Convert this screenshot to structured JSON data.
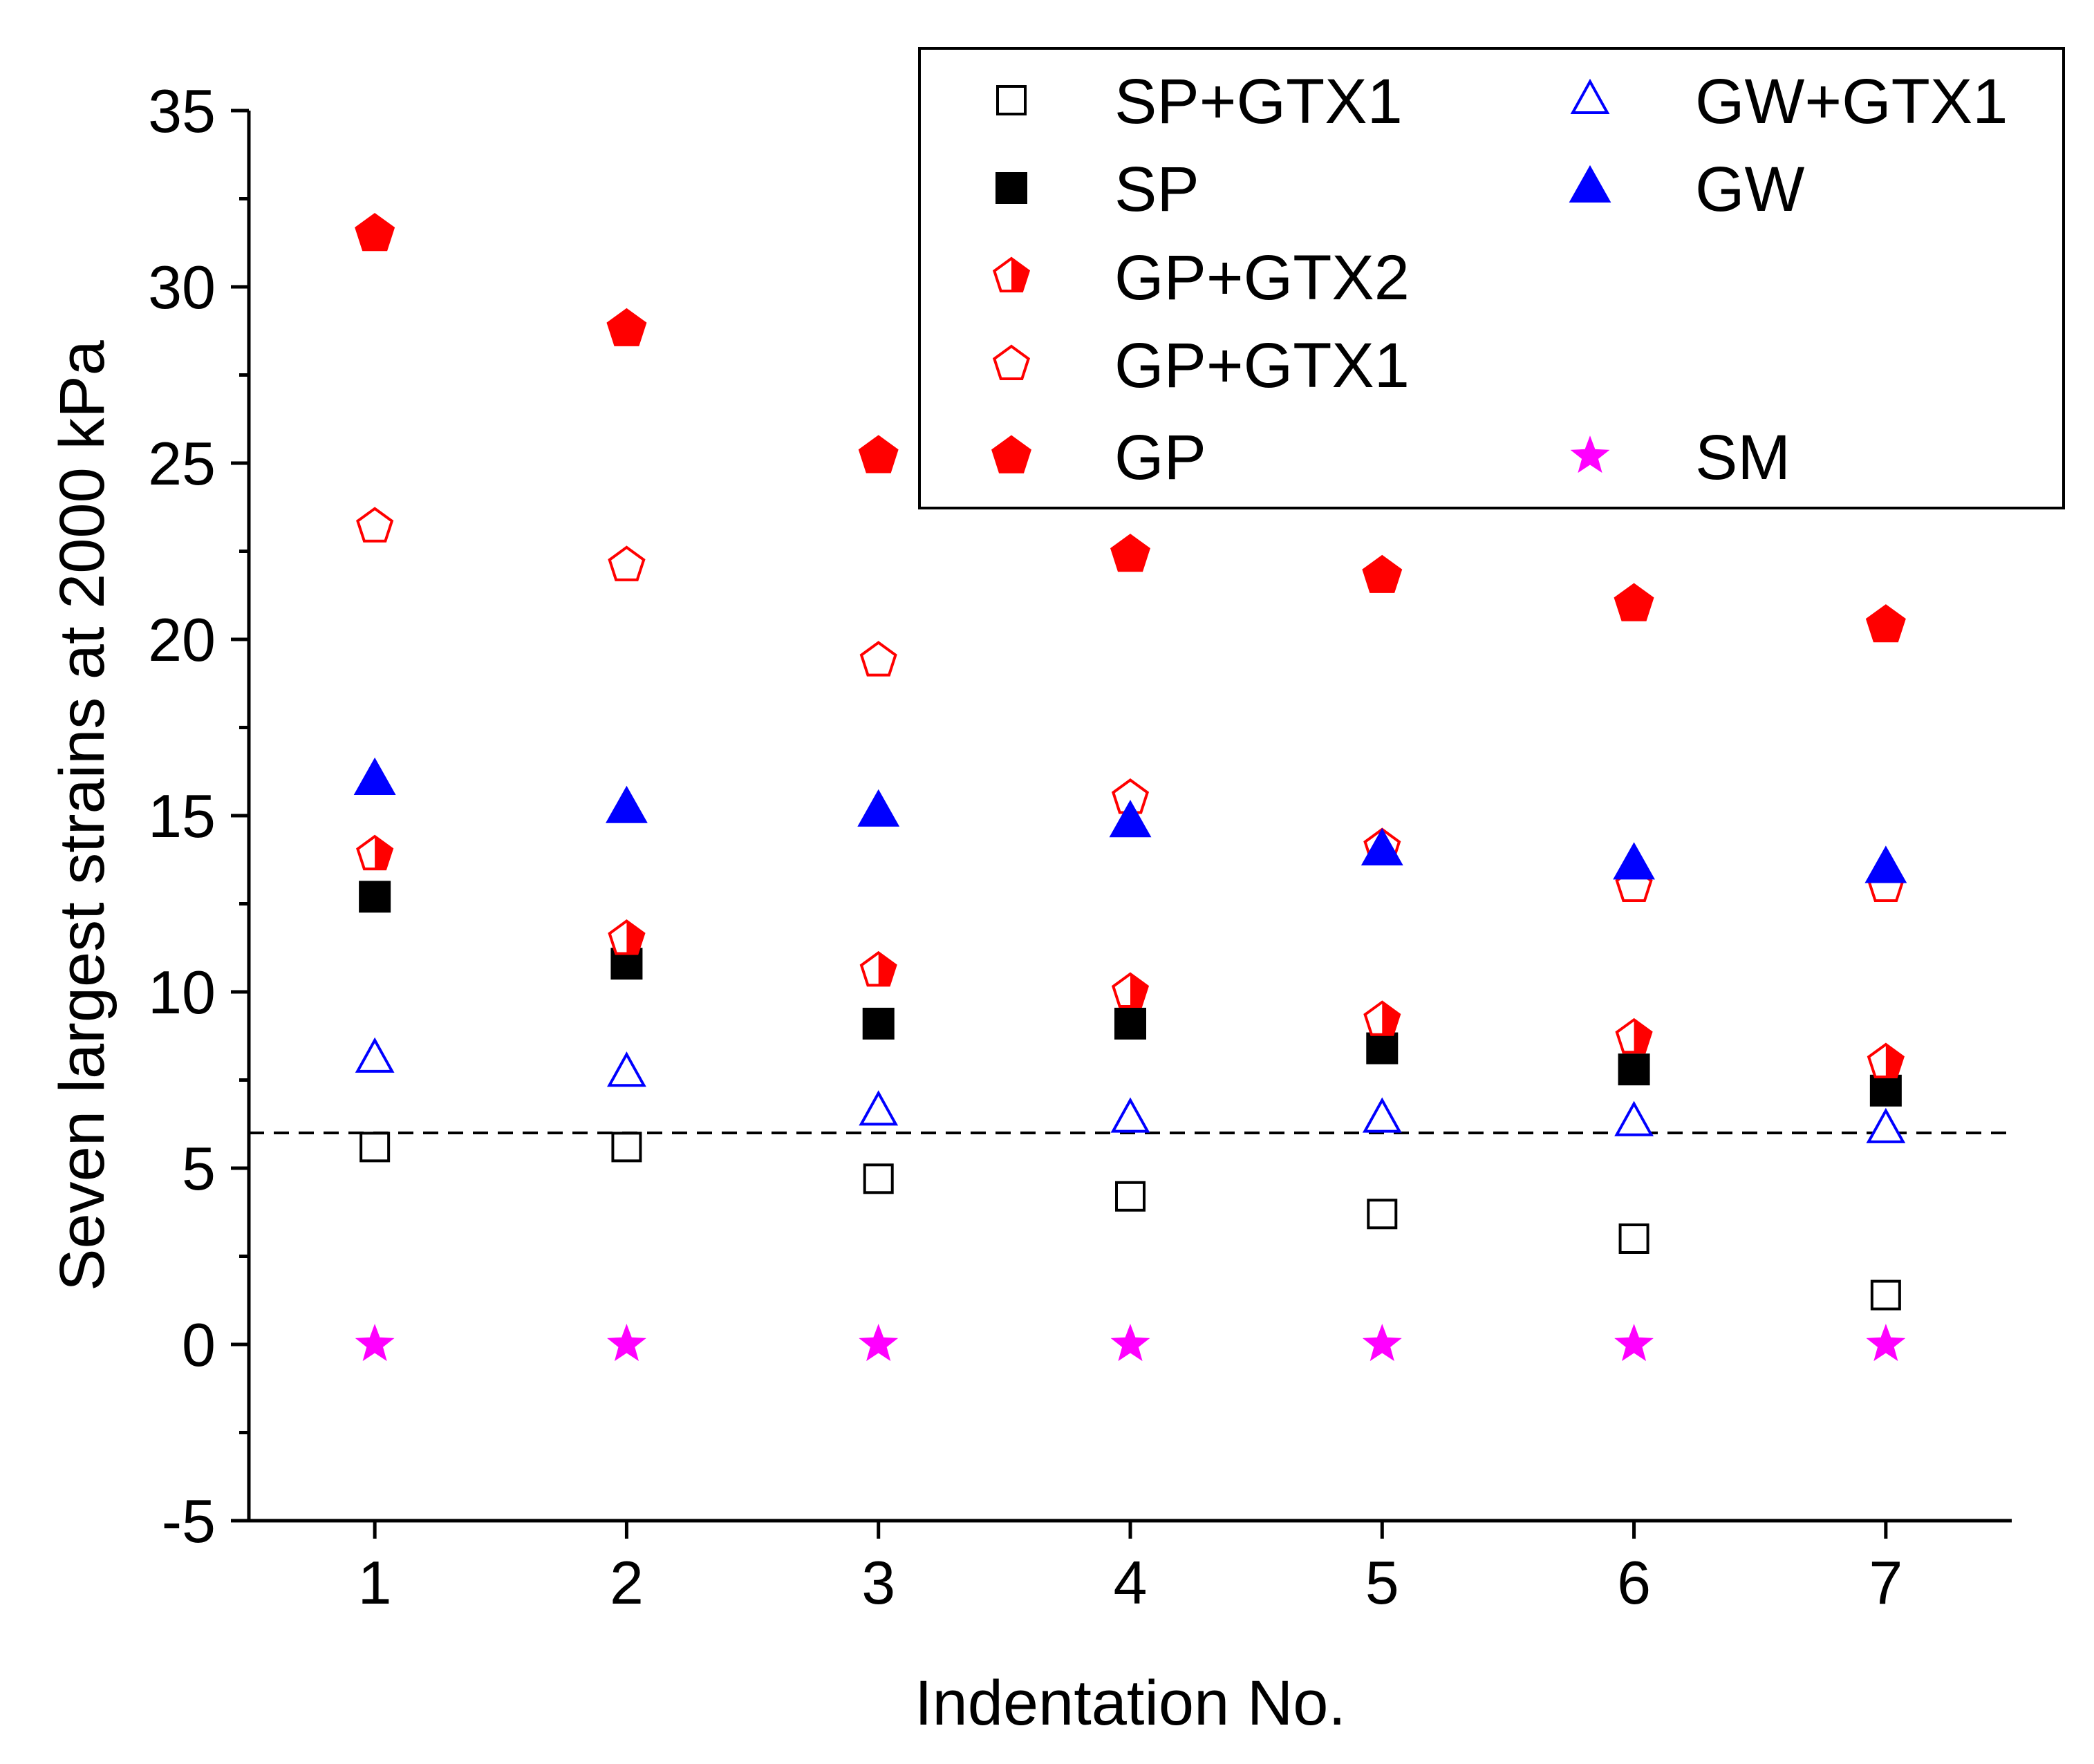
{
  "chart_data": {
    "type": "scatter",
    "xlabel": "Indentation No.",
    "ylabel": "Seven largest strains at 2000 kPa",
    "xlim": [
      0.5,
      7.5
    ],
    "ylim": [
      -5,
      35
    ],
    "x": [
      1,
      2,
      3,
      4,
      5,
      6,
      7
    ],
    "x_ticks": [
      "1",
      "2",
      "3",
      "4",
      "5",
      "6",
      "7"
    ],
    "y_ticks": [
      "-5",
      "0",
      "5",
      "10",
      "15",
      "20",
      "25",
      "30",
      "35"
    ],
    "y_tick_values": [
      -5,
      0,
      5,
      10,
      15,
      20,
      25,
      30,
      35
    ],
    "reference_line": {
      "y": 6,
      "style": "dashed",
      "color": "#000000"
    },
    "legend_position": "top-right",
    "series": [
      {
        "name": "SP+GTX1",
        "marker": "square-open",
        "color": "#000000",
        "values": [
          5.6,
          5.6,
          4.7,
          4.2,
          3.7,
          3.0,
          1.4
        ]
      },
      {
        "name": "SP",
        "marker": "square-filled",
        "color": "#000000",
        "values": [
          12.7,
          10.8,
          9.1,
          9.1,
          8.4,
          7.8,
          7.2
        ]
      },
      {
        "name": "GP+GTX2",
        "marker": "pentagon-half",
        "color": "#ff0000",
        "values": [
          13.9,
          11.5,
          10.6,
          10.0,
          9.2,
          8.7,
          8.0
        ]
      },
      {
        "name": "GP+GTX1",
        "marker": "pentagon-open",
        "color": "#ff0000",
        "values": [
          23.2,
          22.1,
          19.4,
          15.5,
          14.1,
          13.0,
          13.0
        ]
      },
      {
        "name": "GP",
        "marker": "pentagon-filled",
        "color": "#ff0000",
        "values": [
          31.5,
          28.8,
          25.2,
          22.4,
          21.8,
          21.0,
          20.4
        ]
      },
      {
        "name": "GW+GTX1",
        "marker": "triangle-open",
        "color": "#0000ff",
        "values": [
          8.1,
          7.7,
          6.6,
          6.4,
          6.4,
          6.3,
          6.1
        ]
      },
      {
        "name": "GW",
        "marker": "triangle-filled",
        "color": "#0000ff",
        "values": [
          16.0,
          15.2,
          15.1,
          14.8,
          14.0,
          13.6,
          13.5
        ]
      },
      {
        "name": "SM",
        "marker": "star-filled",
        "color": "#ff00ff",
        "values": [
          0,
          0,
          0,
          0,
          0,
          0,
          0
        ]
      }
    ],
    "legend": {
      "columns": [
        [
          "SP+GTX1",
          "SP",
          "GP+GTX2",
          "GP+GTX1",
          "GP"
        ],
        [
          "GW+GTX1",
          "GW",
          "",
          "",
          "SM"
        ]
      ]
    }
  }
}
